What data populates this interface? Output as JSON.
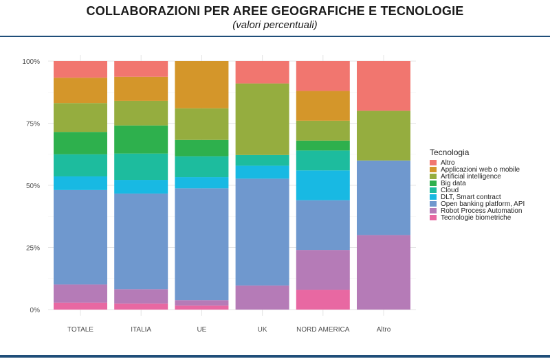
{
  "header": {
    "title": "COLLABORAZIONI PER AREE GEOGRAFICHE E TECNOLOGIE",
    "subtitle": "(valori percentuali)"
  },
  "chart_data": {
    "type": "bar",
    "stacked": true,
    "categories": [
      "TOTALE",
      "ITALIA",
      "UE",
      "UK",
      "NORD AMERICA",
      "Altro"
    ],
    "y_tick_labels": [
      "0%",
      "25%",
      "50%",
      "75%",
      "100%"
    ],
    "ylim": [
      0,
      100
    ],
    "grid": true,
    "legend_title": "Tecnologia",
    "legend_position": "right",
    "series": [
      {
        "name": "Altro",
        "color": "#F1766F",
        "values": [
          6.7,
          6.3,
          0.0,
          9.0,
          12.0,
          20.0
        ]
      },
      {
        "name": "Applicazioni web o mobile",
        "color": "#D4962A",
        "values": [
          10.2,
          9.7,
          19.0,
          0.0,
          12.0,
          0.0
        ]
      },
      {
        "name": "Artificial intelligence",
        "color": "#95AD3F",
        "values": [
          11.6,
          9.9,
          12.7,
          28.8,
          8.0,
          20.0
        ]
      },
      {
        "name": "Big data",
        "color": "#2EB04D",
        "values": [
          9.0,
          11.3,
          6.6,
          0.0,
          4.0,
          0.0
        ]
      },
      {
        "name": "Cloud",
        "color": "#1DBC9E",
        "values": [
          8.9,
          10.6,
          8.4,
          4.3,
          8.0,
          0.0
        ]
      },
      {
        "name": "DLT, Smart contract",
        "color": "#18B9E3",
        "values": [
          5.5,
          5.5,
          4.5,
          5.2,
          12.0,
          0.0
        ]
      },
      {
        "name": "Open banking platform, API",
        "color": "#6F98CE",
        "values": [
          38.0,
          38.5,
          45.0,
          43.0,
          20.0,
          30.0
        ]
      },
      {
        "name": "Robot Process Automation",
        "color": "#B57BB7",
        "values": [
          7.3,
          5.8,
          2.2,
          9.7,
          16.0,
          30.0
        ]
      },
      {
        "name": "Tecnologie biometriche",
        "color": "#E868A2",
        "values": [
          2.8,
          2.4,
          1.6,
          0.0,
          8.0,
          0.0
        ]
      }
    ]
  }
}
